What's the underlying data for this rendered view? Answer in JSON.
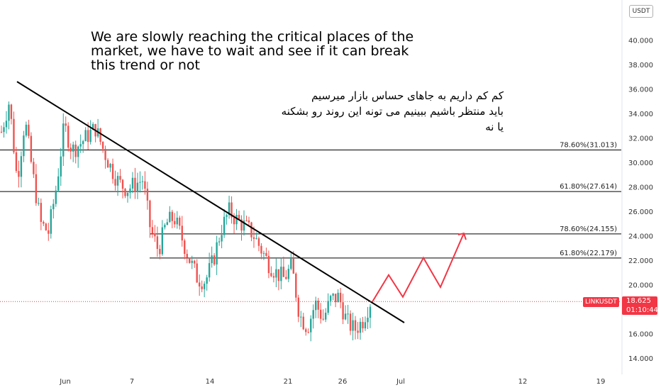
{
  "annotations": {
    "english": "We are slowly reaching the critical places of the\nmarket, we have to wait and see if it can break\nthis trend or not",
    "persian": "کم کم داریم به جاهای حساس بازار میرسیم\nباید منتظر باشیم ببینیم می تونه این روند رو بشکنه یا نه"
  },
  "price_axis": {
    "currency": "USDT",
    "ticks": [
      "14.000",
      "16.000",
      "18.000",
      "20.000",
      "22.000",
      "24.000",
      "26.000",
      "28.000",
      "30.000",
      "32.000",
      "34.000",
      "36.000",
      "38.000",
      "40.000"
    ]
  },
  "current_price": {
    "symbol": "LINKUSDT",
    "price": "18.625",
    "countdown": "01:10:44",
    "value": 18.625
  },
  "colors": {
    "up": "#26a69a",
    "down": "#ef5350",
    "projection": "#f23645",
    "trendline": "#000000",
    "level_line": "#000000",
    "current_price": "#f23645"
  },
  "chart_data": {
    "type": "candlestick",
    "symbol": "LINKUSDT",
    "y_range": [
      13.0,
      43.0
    ],
    "x_ticks": [
      "Jun",
      "7",
      "14",
      "21",
      "26",
      "Jul",
      "12",
      "19"
    ],
    "fib_levels": [
      {
        "label": "78.60%(31.013)",
        "value": 31.013
      },
      {
        "label": "61.80%(27.614)",
        "value": 27.614
      },
      {
        "label": "78.60%(24.155)",
        "value": 24.155
      },
      {
        "label": "61.80%(22.179)",
        "value": 22.179
      }
    ],
    "trendline": {
      "start": [
        "May 25",
        36.6
      ],
      "end": [
        "Jun 30",
        16.9
      ]
    },
    "projection": [
      18.6,
      20.8,
      19.0,
      22.2,
      19.8,
      24.2
    ],
    "price_path": [
      32.5,
      35.0,
      28.5,
      33.5,
      29.0,
      25.0,
      24.3,
      28.0,
      33.0,
      31.0,
      31.5,
      32.2,
      32.8,
      31.0,
      29.5,
      28.3,
      27.8,
      28.2,
      28.6,
      24.5,
      22.8,
      25.0,
      25.5,
      23.8,
      22.0,
      20.5,
      20.3,
      22.0,
      24.5,
      26.0,
      25.3,
      24.8,
      24.2,
      23.0,
      21.8,
      21.0,
      20.5,
      21.5,
      17.5,
      16.5,
      18.5,
      17.2,
      18.8,
      19.0,
      17.0,
      16.3,
      17.0,
      18.6
    ]
  }
}
